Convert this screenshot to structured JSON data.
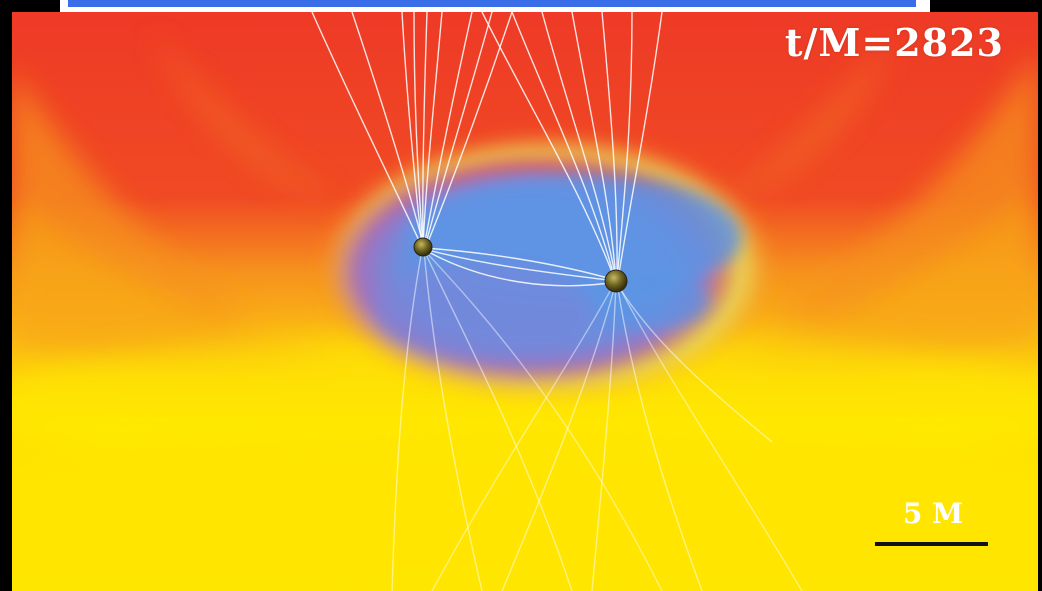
{
  "overlay": {
    "timestamp": "t/M=2823",
    "scale_label": "5 M"
  },
  "colors": {
    "background": "#000000",
    "top_bar_blue": "#3a6ee8",
    "top_bar_white": "#ffffff",
    "outer_red": "#ee3a26",
    "orange": "#f6921e",
    "yellow": "#ffe600",
    "cavity_blue": "#5b8fe0",
    "cavity_purple": "#a070c0",
    "field_lines": "#ffffff",
    "black_holes": "#6b6220",
    "scale_bar": "#111111"
  },
  "icons": {
    "black_holes": [
      "black-hole-left-icon",
      "black-hole-right-icon"
    ]
  }
}
